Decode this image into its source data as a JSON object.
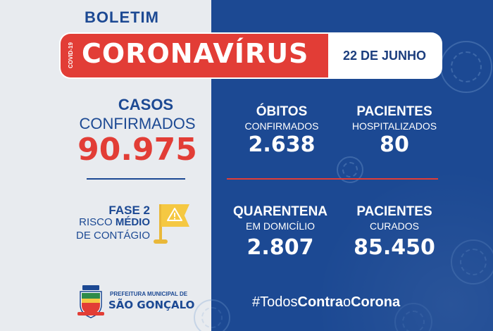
{
  "header": {
    "boletim": "BOLETIM",
    "covid_label": "COVID-19",
    "title": "CORONAVÍRUS",
    "date": "22 DE JUNHO"
  },
  "casos": {
    "title": "CASOS",
    "subtitle": "CONFIRMADOS",
    "value": "90.975"
  },
  "fase": {
    "title": "FASE 2",
    "risk_prefix": "RISCO ",
    "risk_bold": "MÉDIO",
    "risk_suffix": "DE CONTÁGIO",
    "flag_color": "#f5c842",
    "icon": "warning-flag-icon"
  },
  "stats": {
    "obitos": {
      "title": "ÓBITOS",
      "subtitle": "CONFIRMADOS",
      "value": "2.638"
    },
    "hospitalizados": {
      "title": "PACIENTES",
      "subtitle": "HOSPITALIZADOS",
      "value": "80"
    },
    "quarentena": {
      "title": "QUARENTENA",
      "subtitle": "EM DOMICÍLIO",
      "value": "2.807"
    },
    "curados": {
      "title": "PACIENTES",
      "subtitle": "CURADOS",
      "value": "85.450"
    }
  },
  "footer": {
    "prefeitura": "PREFEITURA MUNICIPAL DE",
    "city": "SÃO GONÇALO",
    "hashtag_todos": "#Todos",
    "hashtag_contra": "Contra",
    "hashtag_o": "o",
    "hashtag_corona": "Corona"
  },
  "colors": {
    "blue": "#1c4993",
    "red": "#e23d36",
    "light": "#e8ebef",
    "yellow": "#f5c842"
  }
}
